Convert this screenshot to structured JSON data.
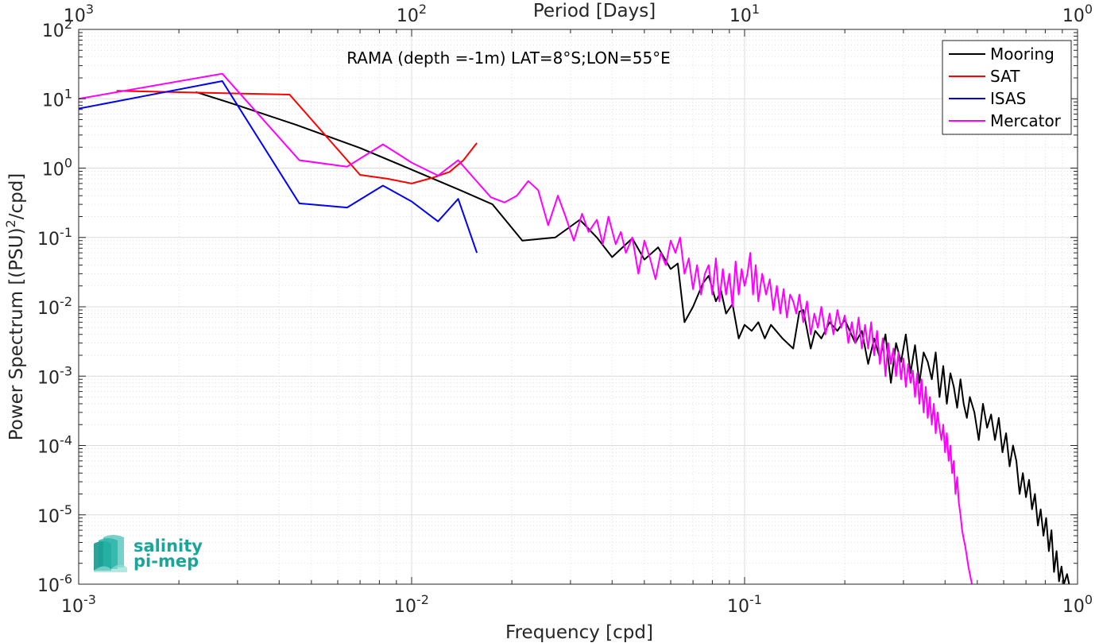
{
  "chart_data": {
    "type": "line",
    "title": "RAMA (depth =-1m) LAT=8°S;LON=55°E",
    "xlabel": "Frequency [cpd]",
    "ylabel": "Power Spectrum [(PSU)²/cpd]",
    "x2label": "Period [Days]",
    "xscale": "log",
    "yscale": "log",
    "xlim": [
      0.001,
      1
    ],
    "ylim": [
      1e-06,
      100
    ],
    "grid": true,
    "legend_position": "top-right",
    "x_ticks": [
      "10-3",
      "10-2",
      "10-1",
      "100"
    ],
    "y_ticks": [
      "10-6",
      "10-5",
      "10-4",
      "10-3",
      "10-2",
      "10-1",
      "100",
      "101",
      "102"
    ],
    "x2_ticks": [
      "103",
      "102",
      "101",
      "100"
    ],
    "series": [
      {
        "name": "Mooring",
        "color": "#000000",
        "points": [
          [
            0.00225,
            12.5
          ],
          [
            0.0029,
            8.5
          ],
          [
            0.0045,
            4.2
          ],
          [
            0.007,
            1.95
          ],
          [
            0.01,
            0.95
          ],
          [
            0.014,
            0.48
          ],
          [
            0.0175,
            0.3
          ],
          [
            0.0215,
            0.09
          ],
          [
            0.027,
            0.1
          ],
          [
            0.032,
            0.18
          ],
          [
            0.036,
            0.1
          ],
          [
            0.04,
            0.052
          ],
          [
            0.046,
            0.097
          ],
          [
            0.05,
            0.048
          ],
          [
            0.055,
            0.072
          ],
          [
            0.06,
            0.035
          ],
          [
            0.063,
            0.042
          ],
          [
            0.066,
            0.006
          ],
          [
            0.07,
            0.01
          ],
          [
            0.075,
            0.022
          ],
          [
            0.078,
            0.028
          ],
          [
            0.082,
            0.012
          ],
          [
            0.085,
            0.017
          ],
          [
            0.088,
            0.008
          ],
          [
            0.092,
            0.011
          ],
          [
            0.096,
            0.0035
          ],
          [
            0.1,
            0.0055
          ],
          [
            0.105,
            0.0045
          ],
          [
            0.11,
            0.006
          ],
          [
            0.115,
            0.0035
          ],
          [
            0.12,
            0.0055
          ],
          [
            0.13,
            0.0035
          ],
          [
            0.14,
            0.0025
          ],
          [
            0.146,
            0.0085
          ],
          [
            0.15,
            0.009
          ],
          [
            0.158,
            0.0025
          ],
          [
            0.163,
            0.0045
          ],
          [
            0.17,
            0.0035
          ],
          [
            0.18,
            0.006
          ],
          [
            0.19,
            0.0045
          ],
          [
            0.2,
            0.0065
          ],
          [
            0.215,
            0.003
          ],
          [
            0.225,
            0.0045
          ],
          [
            0.235,
            0.0015
          ],
          [
            0.245,
            0.0035
          ],
          [
            0.255,
            0.0018
          ],
          [
            0.265,
            0.004
          ],
          [
            0.275,
            0.0008
          ],
          [
            0.285,
            0.003
          ],
          [
            0.295,
            0.0016
          ],
          [
            0.305,
            0.004
          ],
          [
            0.315,
            0.0011
          ],
          [
            0.325,
            0.0028
          ],
          [
            0.335,
            0.0008
          ],
          [
            0.345,
            0.0022
          ],
          [
            0.355,
            0.0016
          ],
          [
            0.365,
            0.0009
          ],
          [
            0.375,
            0.0022
          ],
          [
            0.385,
            0.0005
          ],
          [
            0.395,
            0.0014
          ],
          [
            0.405,
            0.0004
          ],
          [
            0.415,
            0.0011
          ],
          [
            0.425,
            0.0007
          ],
          [
            0.435,
            0.00035
          ],
          [
            0.445,
            0.0009
          ],
          [
            0.455,
            0.0004
          ],
          [
            0.465,
            0.00025
          ],
          [
            0.475,
            0.0005
          ],
          [
            0.49,
            0.0003
          ],
          [
            0.505,
            0.00012
          ],
          [
            0.52,
            0.0004
          ],
          [
            0.535,
            0.00018
          ],
          [
            0.55,
            0.00028
          ],
          [
            0.565,
            0.00012
          ],
          [
            0.58,
            0.00025
          ],
          [
            0.595,
            8e-05
          ],
          [
            0.61,
            0.00015
          ],
          [
            0.625,
            5e-05
          ],
          [
            0.64,
            0.0001
          ],
          [
            0.655,
            6e-05
          ],
          [
            0.67,
            2e-05
          ],
          [
            0.685,
            4e-05
          ],
          [
            0.7,
            1.8e-05
          ],
          [
            0.715,
            3.2e-05
          ],
          [
            0.73,
            1.2e-05
          ],
          [
            0.745,
            2e-05
          ],
          [
            0.76,
            7e-06
          ],
          [
            0.775,
            1.2e-05
          ],
          [
            0.79,
            5e-06
          ],
          [
            0.805,
            9e-06
          ],
          [
            0.82,
            3e-06
          ],
          [
            0.835,
            6e-06
          ],
          [
            0.85,
            1.5e-06
          ],
          [
            0.865,
            3e-06
          ],
          [
            0.88,
            1.1e-06
          ],
          [
            0.895,
            1.8e-06
          ],
          [
            0.91,
            1e-06
          ],
          [
            0.93,
            1.4e-06
          ],
          [
            0.95,
            8.5e-07
          ]
        ]
      },
      {
        "name": "SAT",
        "color": "#ff0000",
        "points": [
          [
            0.0013,
            13
          ],
          [
            0.0022,
            12.3
          ],
          [
            0.0043,
            11.5
          ],
          [
            0.007,
            0.8
          ],
          [
            0.0085,
            0.7
          ],
          [
            0.01,
            0.6
          ],
          [
            0.0115,
            0.72
          ],
          [
            0.013,
            0.88
          ],
          [
            0.0143,
            1.3
          ],
          [
            0.0157,
            2.3
          ]
        ]
      },
      {
        "name": "ISAS",
        "color": "#0000ff",
        "points": [
          [
            0.001,
            7.2
          ],
          [
            0.0027,
            18
          ],
          [
            0.0046,
            0.31
          ],
          [
            0.0064,
            0.27
          ],
          [
            0.0082,
            0.56
          ],
          [
            0.01,
            0.33
          ],
          [
            0.012,
            0.17
          ],
          [
            0.0138,
            0.36
          ],
          [
            0.0157,
            0.06
          ]
        ]
      },
      {
        "name": "Mercator",
        "color": "#ff00ff",
        "points": [
          [
            0.001,
            10
          ],
          [
            0.0027,
            23
          ],
          [
            0.0046,
            1.3
          ],
          [
            0.0064,
            1.05
          ],
          [
            0.0082,
            2.2
          ],
          [
            0.01,
            1.2
          ],
          [
            0.012,
            0.78
          ],
          [
            0.0138,
            1.3
          ],
          [
            0.0157,
            0.64
          ],
          [
            0.0173,
            0.38
          ],
          [
            0.019,
            0.32
          ],
          [
            0.0207,
            0.4
          ],
          [
            0.0224,
            0.65
          ],
          [
            0.024,
            0.48
          ],
          [
            0.0257,
            0.15
          ],
          [
            0.0275,
            0.4
          ],
          [
            0.029,
            0.2
          ],
          [
            0.0307,
            0.09
          ],
          [
            0.0325,
            0.22
          ],
          [
            0.034,
            0.12
          ],
          [
            0.036,
            0.18
          ],
          [
            0.0375,
            0.08
          ],
          [
            0.039,
            0.2
          ],
          [
            0.041,
            0.08
          ],
          [
            0.0425,
            0.12
          ],
          [
            0.044,
            0.06
          ],
          [
            0.046,
            0.1
          ],
          [
            0.048,
            0.03
          ],
          [
            0.05,
            0.09
          ],
          [
            0.052,
            0.05
          ],
          [
            0.054,
            0.025
          ],
          [
            0.056,
            0.06
          ],
          [
            0.058,
            0.04
          ],
          [
            0.06,
            0.09
          ],
          [
            0.062,
            0.06
          ],
          [
            0.064,
            0.1
          ],
          [
            0.066,
            0.03
          ],
          [
            0.068,
            0.05
          ],
          [
            0.07,
            0.018
          ],
          [
            0.072,
            0.04
          ],
          [
            0.074,
            0.015
          ],
          [
            0.076,
            0.03
          ],
          [
            0.078,
            0.04
          ],
          [
            0.08,
            0.015
          ],
          [
            0.082,
            0.05
          ],
          [
            0.084,
            0.012
          ],
          [
            0.086,
            0.035
          ],
          [
            0.088,
            0.015
          ],
          [
            0.09,
            0.03
          ],
          [
            0.092,
            0.01
          ],
          [
            0.094,
            0.045
          ],
          [
            0.096,
            0.015
          ],
          [
            0.098,
            0.035
          ],
          [
            0.1,
            0.02
          ],
          [
            0.102,
            0.03
          ],
          [
            0.104,
            0.06
          ],
          [
            0.106,
            0.015
          ],
          [
            0.108,
            0.04
          ],
          [
            0.11,
            0.012
          ],
          [
            0.113,
            0.03
          ],
          [
            0.116,
            0.015
          ],
          [
            0.119,
            0.025
          ],
          [
            0.122,
            0.009
          ],
          [
            0.125,
            0.02
          ],
          [
            0.128,
            0.008
          ],
          [
            0.131,
            0.018
          ],
          [
            0.134,
            0.007
          ],
          [
            0.137,
            0.015
          ],
          [
            0.14,
            0.012
          ],
          [
            0.143,
            0.008
          ],
          [
            0.146,
            0.015
          ],
          [
            0.15,
            0.006
          ],
          [
            0.154,
            0.012
          ],
          [
            0.158,
            0.004
          ],
          [
            0.162,
            0.008
          ],
          [
            0.166,
            0.005
          ],
          [
            0.17,
            0.01
          ],
          [
            0.175,
            0.004
          ],
          [
            0.18,
            0.008
          ],
          [
            0.185,
            0.004
          ],
          [
            0.19,
            0.009
          ],
          [
            0.195,
            0.005
          ],
          [
            0.2,
            0.0075
          ],
          [
            0.205,
            0.003
          ],
          [
            0.21,
            0.006
          ],
          [
            0.215,
            0.003
          ],
          [
            0.22,
            0.007
          ],
          [
            0.225,
            0.0025
          ],
          [
            0.23,
            0.0055
          ],
          [
            0.235,
            0.0025
          ],
          [
            0.24,
            0.006
          ],
          [
            0.245,
            0.002
          ],
          [
            0.25,
            0.0045
          ],
          [
            0.255,
            0.0015
          ],
          [
            0.26,
            0.0035
          ],
          [
            0.265,
            0.001
          ],
          [
            0.27,
            0.003
          ],
          [
            0.275,
            0.0015
          ],
          [
            0.28,
            0.0025
          ],
          [
            0.285,
            0.001
          ],
          [
            0.29,
            0.0022
          ],
          [
            0.295,
            0.0009
          ],
          [
            0.3,
            0.0018
          ],
          [
            0.305,
            0.0007
          ],
          [
            0.31,
            0.0015
          ],
          [
            0.315,
            0.0008
          ],
          [
            0.32,
            0.0012
          ],
          [
            0.325,
            0.0005
          ],
          [
            0.33,
            0.0011
          ],
          [
            0.335,
            0.0004
          ],
          [
            0.34,
            0.0009
          ],
          [
            0.345,
            0.0003
          ],
          [
            0.35,
            0.0007
          ],
          [
            0.355,
            0.00025
          ],
          [
            0.36,
            0.0005
          ],
          [
            0.365,
            0.0002
          ],
          [
            0.37,
            0.0004
          ],
          [
            0.375,
            0.00015
          ],
          [
            0.38,
            0.0003
          ],
          [
            0.385,
            0.00018
          ],
          [
            0.39,
            0.00012
          ],
          [
            0.395,
            0.0002
          ],
          [
            0.4,
            8e-05
          ],
          [
            0.405,
            0.00015
          ],
          [
            0.41,
            6e-05
          ],
          [
            0.415,
            0.0001
          ],
          [
            0.42,
            4e-05
          ],
          [
            0.425,
            6e-05
          ],
          [
            0.43,
            2e-05
          ],
          [
            0.435,
            3.5e-05
          ],
          [
            0.44,
            1.5e-05
          ],
          [
            0.445,
            1e-05
          ],
          [
            0.45,
            6e-06
          ],
          [
            0.455,
            4.5e-06
          ],
          [
            0.46,
            3.5e-06
          ],
          [
            0.465,
            2.5e-06
          ],
          [
            0.47,
            1.8e-06
          ],
          [
            0.475,
            1.4e-06
          ],
          [
            0.48,
            1.1e-06
          ],
          [
            0.485,
            8e-07
          ]
        ]
      }
    ]
  },
  "logo": {
    "line1": "salinity",
    "line2": "pi-mep",
    "color": "#1aa59a"
  }
}
